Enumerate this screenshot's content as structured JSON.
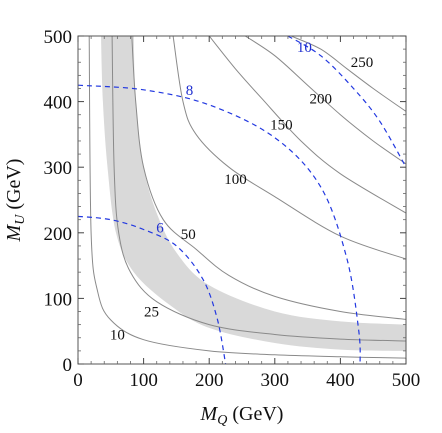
{
  "chart_data": {
    "type": "contour",
    "title": "",
    "x_axis": {
      "label_main": "M",
      "label_sub": "Q",
      "label_unit": " (GeV)",
      "range": [
        0,
        500
      ],
      "ticks": [
        0,
        100,
        200,
        300,
        400,
        500
      ],
      "tick_labels": [
        "0",
        "100",
        "200",
        "300",
        "400",
        "500"
      ]
    },
    "y_axis": {
      "label_main": "M",
      "label_sub": "U",
      "label_unit": " (GeV)",
      "range": [
        0,
        500
      ],
      "ticks": [
        0,
        100,
        200,
        300,
        400,
        500
      ],
      "tick_labels": [
        "0",
        "100",
        "200",
        "300",
        "400",
        "500"
      ]
    },
    "grid": false,
    "solid_contours": [
      {
        "level": 10,
        "label": "10",
        "label_at": [
          60,
          45
        ],
        "points": [
          [
            17,
            500
          ],
          [
            20,
            200
          ],
          [
            30,
            110
          ],
          [
            50,
            67
          ],
          [
            100,
            37
          ],
          [
            200,
            20
          ],
          [
            300,
            14
          ],
          [
            400,
            11
          ],
          [
            500,
            9
          ]
        ]
      },
      {
        "level": 25,
        "label": "25",
        "label_at": [
          112,
          80
        ],
        "points": [
          [
            52,
            500
          ],
          [
            55,
            300
          ],
          [
            62,
            200
          ],
          [
            80,
            140
          ],
          [
            120,
            95
          ],
          [
            200,
            60
          ],
          [
            300,
            45
          ],
          [
            400,
            38
          ],
          [
            500,
            35
          ]
        ]
      },
      {
        "level": 50,
        "label": "50",
        "label_at": [
          168,
          198
        ],
        "points": [
          [
            82,
            500
          ],
          [
            88,
            400
          ],
          [
            100,
            300
          ],
          [
            130,
            220
          ],
          [
            180,
            175
          ],
          [
            230,
            135
          ],
          [
            300,
            103
          ],
          [
            400,
            80
          ],
          [
            500,
            68
          ]
        ]
      },
      {
        "level": 100,
        "label": "100",
        "label_at": [
          240,
          282
        ],
        "points": [
          [
            145,
            500
          ],
          [
            160,
            400
          ],
          [
            180,
            350
          ],
          [
            230,
            300
          ],
          [
            300,
            255
          ],
          [
            400,
            195
          ],
          [
            500,
            160
          ]
        ]
      },
      {
        "level": 150,
        "label": "150",
        "label_at": [
          310,
          365
        ],
        "points": [
          [
            200,
            500
          ],
          [
            240,
            450
          ],
          [
            280,
            405
          ],
          [
            340,
            340
          ],
          [
            400,
            290
          ],
          [
            500,
            230
          ]
        ]
      },
      {
        "level": 200,
        "label": "200",
        "label_at": [
          370,
          405
        ],
        "points": [
          [
            255,
            500
          ],
          [
            300,
            470
          ],
          [
            350,
            425
          ],
          [
            400,
            380
          ],
          [
            450,
            340
          ],
          [
            500,
            305
          ]
        ]
      },
      {
        "level": 250,
        "label": "250",
        "label_at": [
          433,
          460
        ],
        "points": [
          [
            325,
            500
          ],
          [
            370,
            480
          ],
          [
            410,
            450
          ],
          [
            450,
            420
          ],
          [
            500,
            385
          ]
        ]
      }
    ],
    "dashed_contours": [
      {
        "level": 6,
        "label": "6",
        "label_at": [
          125,
          208
        ],
        "points": [
          [
            0,
            225
          ],
          [
            50,
            220
          ],
          [
            100,
            205
          ],
          [
            150,
            180
          ],
          [
            190,
            130
          ],
          [
            212,
            70
          ],
          [
            225,
            0
          ]
        ]
      },
      {
        "level": 8,
        "label": "8",
        "label_at": [
          170,
          418
        ],
        "points": [
          [
            0,
            425
          ],
          [
            100,
            418
          ],
          [
            200,
            395
          ],
          [
            300,
            345
          ],
          [
            370,
            270
          ],
          [
            410,
            160
          ],
          [
            428,
            50
          ],
          [
            430,
            0
          ]
        ]
      },
      {
        "level": 10,
        "label": "10",
        "label_at": [
          345,
          483
        ],
        "points": [
          [
            320,
            500
          ],
          [
            370,
            470
          ],
          [
            420,
            420
          ],
          [
            460,
            370
          ],
          [
            500,
            300
          ]
        ]
      }
    ],
    "band": {
      "color": "#d9d9d9",
      "lower": [
        [
          85,
          500
        ],
        [
          88,
          400
        ],
        [
          100,
          300
        ],
        [
          120,
          230
        ],
        [
          150,
          170
        ],
        [
          200,
          120
        ],
        [
          300,
          80
        ],
        [
          400,
          65
        ],
        [
          500,
          60
        ]
      ],
      "upper": [
        [
          35,
          500
        ],
        [
          38,
          400
        ],
        [
          45,
          300
        ],
        [
          58,
          200
        ],
        [
          85,
          140
        ],
        [
          140,
          90
        ],
        [
          200,
          55
        ],
        [
          300,
          32
        ],
        [
          400,
          22
        ],
        [
          500,
          20
        ]
      ]
    }
  }
}
